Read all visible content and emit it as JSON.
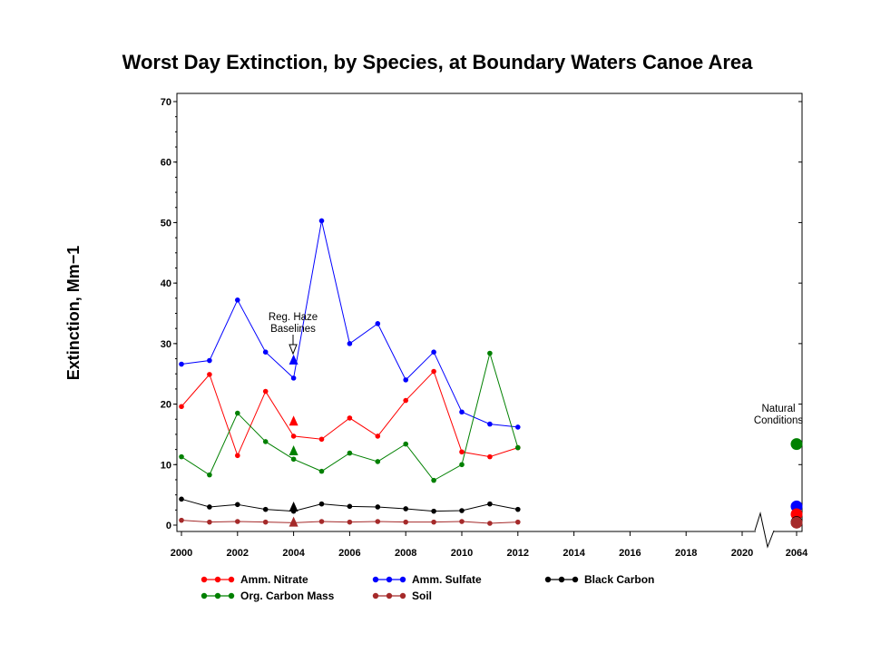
{
  "chart_data": {
    "type": "line",
    "title": "Worst Day Extinction, by Species, at Boundary Waters Canoe Area",
    "ylabel": "Extinction, Mm−1",
    "xlabel": "",
    "ylim": [
      0,
      70
    ],
    "yticks": [
      0,
      10,
      20,
      30,
      40,
      50,
      60,
      70
    ],
    "xticks": [
      "2000",
      "2002",
      "2004",
      "2006",
      "2008",
      "2010",
      "2012",
      "2014",
      "2016",
      "2018",
      "2020",
      "2064"
    ],
    "x": [
      2000,
      2001,
      2002,
      2003,
      2004,
      2005,
      2006,
      2007,
      2008,
      2009,
      2010,
      2011,
      2012
    ],
    "series": [
      {
        "name": "Amm. Nitrate",
        "color": "#ff0000",
        "values": [
          19.6,
          24.9,
          11.5,
          22.1,
          14.7,
          14.2,
          17.7,
          14.7,
          20.6,
          25.4,
          12.1,
          11.3,
          12.8
        ],
        "baseline_2004": 17.2,
        "natural_2064": 1.8
      },
      {
        "name": "Amm. Sulfate",
        "color": "#0000ff",
        "values": [
          26.6,
          27.2,
          37.2,
          28.6,
          24.3,
          50.3,
          30.0,
          33.3,
          24.0,
          28.6,
          18.7,
          16.7,
          16.2
        ],
        "baseline_2004": 27.3,
        "natural_2064": 3.1
      },
      {
        "name": "Black Carbon",
        "color": "#000000",
        "values": [
          4.3,
          3.0,
          3.4,
          2.6,
          2.3,
          3.5,
          3.1,
          3.0,
          2.7,
          2.3,
          2.4,
          3.5,
          2.6
        ],
        "baseline_2004": 3.0,
        "natural_2064": 0.5
      },
      {
        "name": "Org. Carbon Mass",
        "color": "#008000",
        "values": [
          11.3,
          8.3,
          18.5,
          13.8,
          10.9,
          8.9,
          11.9,
          10.5,
          13.4,
          7.4,
          10.0,
          28.4,
          12.8
        ],
        "baseline_2004": 12.3,
        "natural_2064": 13.4
      },
      {
        "name": "Soil",
        "color": "#a52a2a",
        "values": [
          0.8,
          0.5,
          0.6,
          0.5,
          0.4,
          0.6,
          0.5,
          0.6,
          0.5,
          0.5,
          0.6,
          0.3,
          0.5
        ],
        "baseline_2004": 0.5,
        "natural_2064": 0.4
      }
    ],
    "annotations": {
      "baseline_line1": "Reg. Haze",
      "baseline_line2": "Baselines",
      "natural_line1": "Natural",
      "natural_line2": "Conditions"
    },
    "legend_placement": "bottom",
    "grid": false
  }
}
